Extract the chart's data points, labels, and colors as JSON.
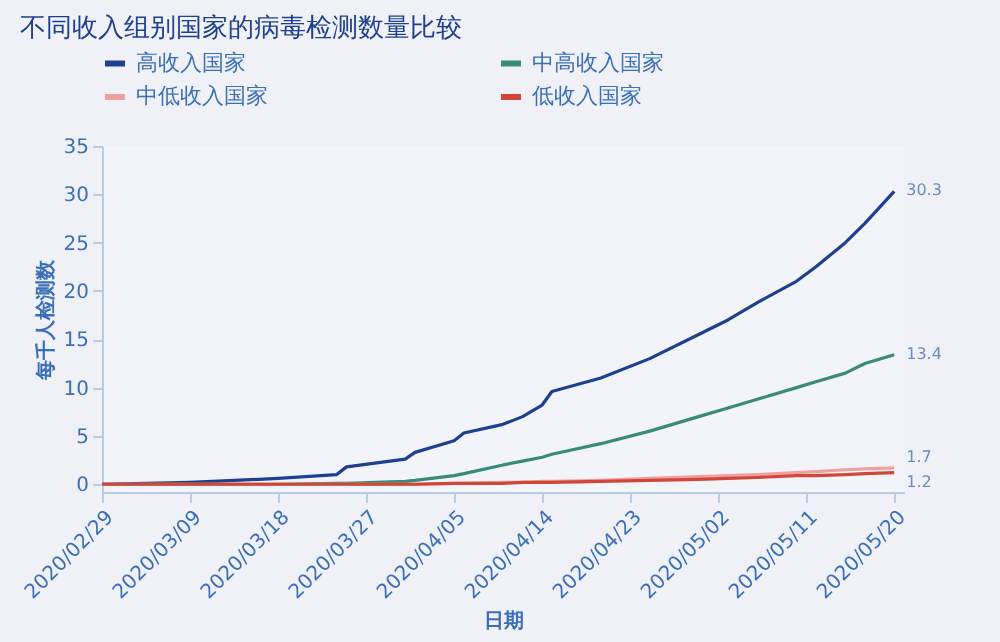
{
  "chart_data": {
    "type": "line",
    "title": "不同收入组别国家的病毒检测数量比较",
    "xlabel": "日期",
    "ylabel": "每千人检测数",
    "x": [
      "2020-02-29",
      "2020-03-09",
      "2020-03-18",
      "2020-03-24",
      "2020-03-25",
      "2020-03-31",
      "2020-04-01",
      "2020-04-05",
      "2020-04-06",
      "2020-04-10",
      "2020-04-12",
      "2020-04-14",
      "2020-04-15",
      "2020-04-20",
      "2020-04-25",
      "2020-04-30",
      "2020-05-03",
      "2020-05-06",
      "2020-05-10",
      "2020-05-12",
      "2020-05-15",
      "2020-05-17",
      "2020-05-20"
    ],
    "series": [
      {
        "name": "高收入国家",
        "color": "#1f3f8f",
        "values": [
          0,
          0.2,
          0.6,
          1.0,
          1.8,
          2.6,
          3.3,
          4.5,
          5.3,
          6.2,
          7.0,
          8.2,
          9.6,
          11,
          13,
          15.5,
          17,
          18.8,
          21,
          22.5,
          25,
          27,
          30.3
        ]
      },
      {
        "name": "中高收入国家",
        "color": "#3a8a78",
        "values": [
          0,
          0,
          0,
          0.1,
          0.1,
          0.3,
          0.4,
          0.9,
          1.1,
          2,
          2.4,
          2.8,
          3.1,
          4.2,
          5.5,
          7,
          7.9,
          8.8,
          10,
          10.6,
          11.5,
          12.5,
          13.4
        ]
      },
      {
        "name": "中低收入国家",
        "color": "#f0a0a0",
        "values": [
          0,
          0,
          0,
          0,
          0,
          0,
          0,
          0.1,
          0.1,
          0.2,
          0.2,
          0.3,
          0.3,
          0.4,
          0.6,
          0.8,
          0.9,
          1.0,
          1.2,
          1.3,
          1.5,
          1.6,
          1.7
        ]
      },
      {
        "name": "低收入国家",
        "color": "#d0473a",
        "values": [
          0,
          0,
          0,
          0,
          0,
          0,
          0,
          0.1,
          0.1,
          0.1,
          0.2,
          0.2,
          0.2,
          0.3,
          0.4,
          0.5,
          0.6,
          0.7,
          0.9,
          0.9,
          1.0,
          1.1,
          1.2
        ]
      }
    ],
    "xlim": [
      "2020-02-29",
      "2020-05-21"
    ],
    "xticks": [
      {
        "value": "2020-02-29",
        "label": "2020/02/29"
      },
      {
        "value": "2020-03-09",
        "label": "2020/03/09"
      },
      {
        "value": "2020-03-18",
        "label": "2020/03/18"
      },
      {
        "value": "2020-03-27",
        "label": "2020/03/27"
      },
      {
        "value": "2020-04-05",
        "label": "2020/04/05"
      },
      {
        "value": "2020-04-14",
        "label": "2020/04/14"
      },
      {
        "value": "2020-04-23",
        "label": "2020/04/23"
      },
      {
        "value": "2020-05-02",
        "label": "2020/05/02"
      },
      {
        "value": "2020-05-11",
        "label": "2020/05/11"
      },
      {
        "value": "2020-05-20",
        "label": "2020/05/20"
      }
    ],
    "ylim": [
      -0.8,
      35
    ],
    "yticks": [
      0,
      5,
      10,
      15,
      20,
      25,
      30,
      35
    ],
    "annotations": [
      {
        "text": "30.3",
        "x": "2020-05-20",
        "y": 30.3
      },
      {
        "text": "13.4",
        "x": "2020-05-20",
        "y": 13.4
      },
      {
        "text": "1.7",
        "x": "2020-05-20",
        "y": 1.7
      },
      {
        "text": "1.2",
        "x": "2020-05-20",
        "y": 1.2
      }
    ],
    "grid": false,
    "legend": "top",
    "line_style": "solid",
    "marker": "none"
  }
}
